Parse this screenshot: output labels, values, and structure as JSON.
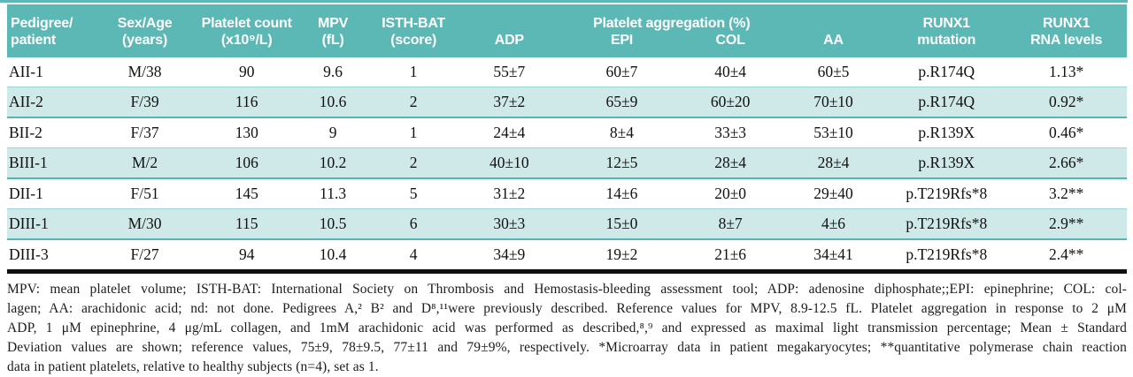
{
  "colors": {
    "teal": "#5cb8b4",
    "row_alt": "#cfe9e8",
    "row_border": "#54b6b2",
    "row_border_light": "#9ad6d3",
    "bottom_bar": "#101010"
  },
  "table": {
    "header": {
      "row1": [
        "Pedigree/",
        "Sex/Age",
        "Platelet count",
        "MPV",
        "ISTH-BAT",
        "Platelet aggregation (%)",
        "RUNX1",
        "RUNX1"
      ],
      "row2": [
        "patient",
        "(years)",
        "(x10⁹/L)",
        "(fL)",
        "(score)",
        "ADP",
        "EPI",
        "COL",
        "AA",
        "mutation",
        "RNA levels"
      ]
    },
    "rows": [
      [
        "AII-1",
        "M/38",
        "90",
        "9.6",
        "1",
        "55±7",
        "60±7",
        "40±4",
        "60±5",
        "p.R174Q",
        "1.13*"
      ],
      [
        "AII-2",
        "F/39",
        "116",
        "10.6",
        "2",
        "37±2",
        "65±9",
        "60±20",
        "70±10",
        "p.R174Q",
        "0.92*"
      ],
      [
        "BII-2",
        "F/37",
        "130",
        "9",
        "1",
        "24±4",
        "8±4",
        "33±3",
        "53±10",
        "p.R139X",
        "0.46*"
      ],
      [
        "BIII-1",
        "M/2",
        "106",
        "10.2",
        "2",
        "40±10",
        "12±5",
        "28±4",
        "28±4",
        "p.R139X",
        "2.66*"
      ],
      [
        "DII-1",
        "F/51",
        "145",
        "11.3",
        "5",
        "31±2",
        "14±6",
        "20±0",
        "29±40",
        "p.T219Rfs*8",
        "3.2**"
      ],
      [
        "DIII-1",
        "M/30",
        "115",
        "10.5",
        "6",
        "30±3",
        "15±0",
        "8±7",
        "4±6",
        "p.T219Rfs*8",
        "2.9**"
      ],
      [
        "DIII-3",
        "F/27",
        "94",
        "10.4",
        "4",
        "34±9",
        "19±2",
        "21±6",
        "34±41",
        "p.T219Rfs*8",
        "2.4**"
      ]
    ]
  },
  "footnote": {
    "lines": [
      "MPV: mean platelet volume; ISTH-BAT: International Society on Thrombosis and Hemostasis-bleeding assessment tool; ADP: adenosine diphosphate;;EPI: epinephrine; COL: col-",
      "lagen; AA: arachidonic acid; nd: not done.  Pedigrees A,² B² and D⁸,¹¹were previously described. Reference values for MPV, 8.9-12.5 fL. Platelet aggregation in response to 2 μM",
      "ADP, 1 μM epinephrine, 4 μg/mL collagen, and 1mM arachidonic acid was performed as described,⁸,⁹ and expressed as maximal light transmission percentage; Mean ± Standard",
      "Deviation values are shown; reference values, 75±9, 78±9.5, 77±11 and 79±9%, respectively. *Microarray data in patient megakaryocytes; **quantitative polymerase chain reaction",
      "data in patient platelets, relative to healthy subjects (n=4), set as 1."
    ]
  }
}
